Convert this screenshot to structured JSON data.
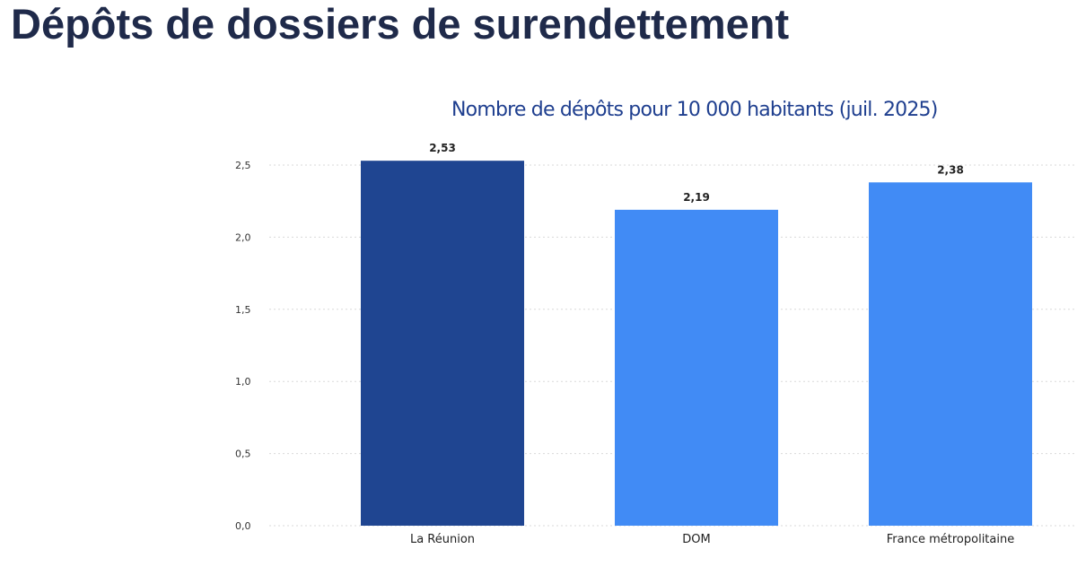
{
  "page": {
    "title": "Dépôts de dossiers de surendettement"
  },
  "colors": {
    "title_text": "#1f2a4a",
    "chart_title_text": "#1f3f8f",
    "highlight_bar": "#1f4591",
    "bar": "#418bf5",
    "gridline": "#d9d9d9"
  },
  "chart_data": {
    "type": "bar",
    "title": "Nombre de dépôts pour 10 000 habitants (juil. 2025)",
    "xlabel": "",
    "ylabel": "",
    "categories": [
      "La Réunion",
      "DOM",
      "France métropolitaine"
    ],
    "values": [
      2.53,
      2.19,
      2.38
    ],
    "data_labels": [
      "2,53",
      "2,19",
      "2,38"
    ],
    "highlighted_category": "La Réunion",
    "ylim": [
      0,
      2.5
    ],
    "yticks": [
      0,
      0.5,
      1.0,
      1.5,
      2.0,
      2.5
    ],
    "ytick_labels": [
      "0,0",
      "0,5",
      "1,0",
      "1,5",
      "2,0",
      "2,5"
    ],
    "grid": true,
    "legend": "none"
  }
}
